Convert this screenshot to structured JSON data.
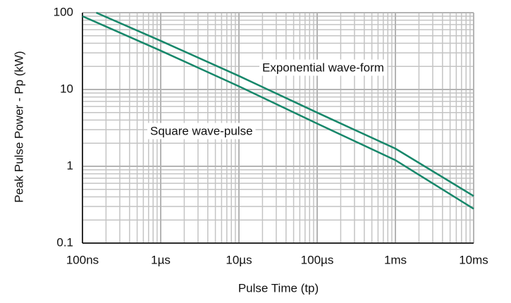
{
  "chart_data": {
    "type": "line",
    "x_label": "Pulse Time (tp)",
    "y_label": "Peak Pulse Power - Pp (kW)",
    "log_x": true,
    "log_y": true,
    "grid": true,
    "xlim": [
      1e-07,
      0.01
    ],
    "xticks": [
      {
        "value": 1e-07,
        "label": "100ns"
      },
      {
        "value": 1e-06,
        "label": "1µs"
      },
      {
        "value": 1e-05,
        "label": "10µs"
      },
      {
        "value": 0.0001,
        "label": "100µs"
      },
      {
        "value": 0.001,
        "label": "1ms"
      },
      {
        "value": 0.01,
        "label": "10ms"
      }
    ],
    "ylim": [
      0.1,
      100
    ],
    "yticks": [
      0.1,
      1,
      10,
      100
    ],
    "series": [
      {
        "name": "Exponential wave-form",
        "color": "#17876a",
        "x": [
          1.5e-07,
          1e-06,
          1e-05,
          0.0001,
          0.001,
          0.01
        ],
        "values": [
          100,
          43,
          15,
          5,
          1.7,
          0.41
        ]
      },
      {
        "name": "Square wave-pulse",
        "color": "#17876a",
        "x": [
          1e-07,
          1e-06,
          1e-05,
          0.0001,
          0.001,
          0.01
        ],
        "values": [
          90,
          32,
          11,
          3.6,
          1.2,
          0.28
        ]
      }
    ]
  }
}
